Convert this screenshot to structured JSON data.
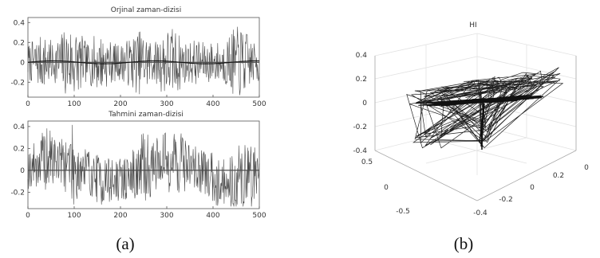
{
  "figure": {
    "panel_a_caption": "(a)",
    "panel_b_caption": "(b)"
  },
  "chart_data": [
    {
      "type": "line",
      "title": "Orjinal zaman-dizisi",
      "xlim": [
        0,
        500
      ],
      "ylim": [
        -0.35,
        0.45
      ],
      "x_ticks": [
        "0",
        "100",
        "200",
        "300",
        "400",
        "500"
      ],
      "y_ticks": [
        "0.4",
        "0.2",
        "0",
        "-0.2"
      ],
      "y_tick_values": [
        0.4,
        0.2,
        0,
        -0.2
      ],
      "x_tick_values": [
        0,
        100,
        200,
        300,
        400,
        500
      ],
      "series": [
        {
          "style": "dense oscillating signal",
          "color": "#4a4a4a"
        },
        {
          "style": "smooth trend",
          "color": "#111111"
        }
      ]
    },
    {
      "type": "line",
      "title": "Tahmini zaman-dizisi",
      "xlim": [
        0,
        500
      ],
      "ylim": [
        -0.35,
        0.45
      ],
      "x_ticks": [
        "0",
        "100",
        "200",
        "300",
        "400",
        "500"
      ],
      "y_ticks": [
        "0.4",
        "0.2",
        "0",
        "-0.2"
      ],
      "y_tick_values": [
        0.4,
        0.2,
        0,
        -0.2
      ],
      "x_tick_values": [
        0,
        100,
        200,
        300,
        400,
        500
      ],
      "series": [
        {
          "style": "dense oscillating signal",
          "color": "#4a4a4a"
        }
      ]
    },
    {
      "type": "line",
      "subtype": "3d",
      "title": "HI",
      "z_ticks": [
        "0.4",
        "0.2",
        "0",
        "-0.2",
        "-0.4"
      ],
      "y_ticks": [
        "0.5",
        "0",
        "-0.5"
      ],
      "x_ticks": [
        "-0.4",
        "-0.2",
        "0",
        "0.2",
        "0"
      ],
      "series": [
        {
          "style": "tangled 3d trajectory",
          "color": "#222222"
        }
      ]
    }
  ]
}
